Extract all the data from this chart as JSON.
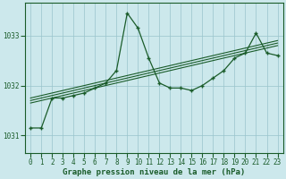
{
  "xlabel": "Graphe pression niveau de la mer (hPa)",
  "background_color": "#cce8ec",
  "grid_color": "#99c4cc",
  "line_color": "#1a5c2a",
  "marker_color": "#1a5c2a",
  "ylim": [
    1030.65,
    1033.65
  ],
  "yticks": [
    1031,
    1032,
    1033
  ],
  "xlim": [
    -0.5,
    23.5
  ],
  "xticks": [
    0,
    1,
    2,
    3,
    4,
    5,
    6,
    7,
    8,
    9,
    10,
    11,
    12,
    13,
    14,
    15,
    16,
    17,
    18,
    19,
    20,
    21,
    22,
    23
  ],
  "main_series": [
    1031.15,
    1031.15,
    1031.75,
    1031.75,
    1031.8,
    1031.85,
    1031.95,
    1032.05,
    1032.3,
    1033.45,
    1033.15,
    1032.55,
    1032.05,
    1031.95,
    1031.95,
    1031.9,
    1032.0,
    1032.15,
    1032.3,
    1032.55,
    1032.65,
    1033.05,
    1032.65,
    1032.6
  ],
  "trend_lines": [
    [
      1031.75,
      1031.8,
      1031.85,
      1031.9,
      1031.95,
      1032.0,
      1032.05,
      1032.1,
      1032.15,
      1032.2,
      1032.25,
      1032.3,
      1032.35,
      1032.4,
      1032.45,
      1032.5,
      1032.55,
      1032.6,
      1032.65,
      1032.7,
      1032.75,
      1032.8,
      1032.85,
      1032.9
    ],
    [
      1031.7,
      1031.75,
      1031.8,
      1031.85,
      1031.9,
      1031.95,
      1032.0,
      1032.05,
      1032.1,
      1032.15,
      1032.2,
      1032.25,
      1032.3,
      1032.35,
      1032.4,
      1032.45,
      1032.5,
      1032.55,
      1032.6,
      1032.65,
      1032.7,
      1032.75,
      1032.8,
      1032.85
    ],
    [
      1031.65,
      1031.7,
      1031.75,
      1031.8,
      1031.85,
      1031.9,
      1031.95,
      1032.0,
      1032.05,
      1032.1,
      1032.15,
      1032.2,
      1032.25,
      1032.3,
      1032.35,
      1032.4,
      1032.45,
      1032.5,
      1032.55,
      1032.6,
      1032.65,
      1032.7,
      1032.75,
      1032.8
    ]
  ],
  "tick_fontsize": 5.5,
  "xlabel_fontsize": 6.5
}
